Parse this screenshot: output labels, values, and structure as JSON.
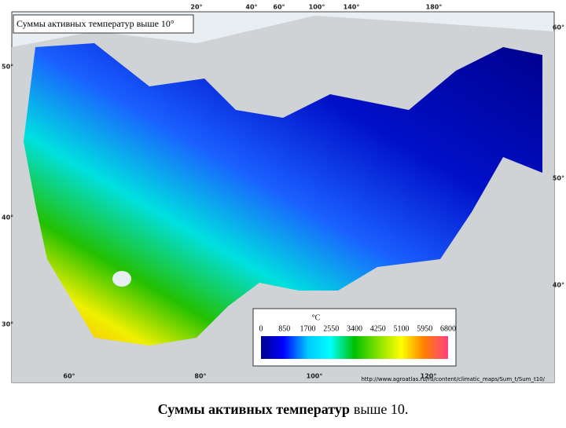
{
  "map": {
    "title": "Суммы активных температур выше 10°",
    "top_labels": [
      "20°",
      "40°",
      "60°",
      "100°",
      "140°",
      "180°"
    ],
    "left_labels": [
      "50°",
      "40°",
      "30°"
    ],
    "right_labels": [
      "60°",
      "50°",
      "40°"
    ],
    "bottom_labels": [
      "60°",
      "80°",
      "100°",
      "120°"
    ],
    "legend": {
      "unit": "°C",
      "ticks": [
        0,
        850,
        1700,
        2550,
        3400,
        4250,
        5100,
        5950,
        6800
      ]
    },
    "source": "http://www.agroatlas.ru/ru/content/climatic_maps/Sum_t/Sum_t10/"
  },
  "caption": {
    "bold": "Суммы активных температур",
    "rest": "выше 10."
  }
}
